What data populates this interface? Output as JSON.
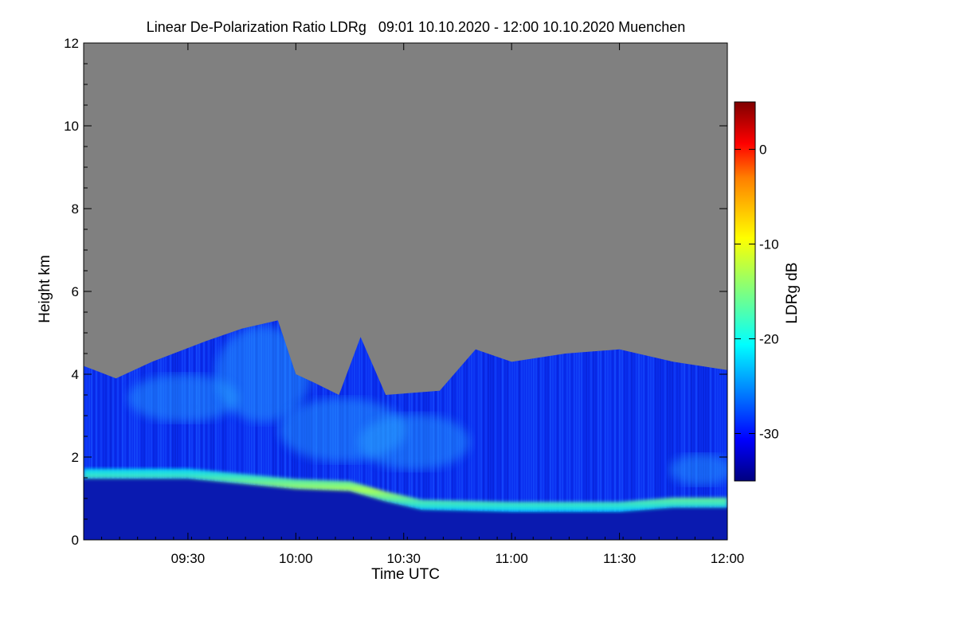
{
  "chart_data": {
    "type": "heatmap",
    "title": "Linear De-Polarization Ratio LDRg   09:01 10.10.2020 - 12:00 10.10.2020 Muenchen",
    "xlabel": "Time UTC",
    "ylabel": "Height km",
    "xlim": [
      "09:01",
      "12:00"
    ],
    "ylim": [
      0,
      12
    ],
    "x_ticks": [
      "09:30",
      "10:00",
      "10:30",
      "11:00",
      "11:30",
      "12:00"
    ],
    "y_ticks": [
      0,
      2,
      4,
      6,
      8,
      10,
      12
    ],
    "colorbar": {
      "label": "LDRg dB",
      "range": [
        -35,
        5
      ],
      "ticks": [
        0,
        -10,
        -20,
        -30
      ]
    },
    "no_data_color": "#808080",
    "colormap": [
      "#00007f",
      "#0000ff",
      "#007fff",
      "#00ffff",
      "#7fff7f",
      "#ffff00",
      "#ff7f00",
      "#ff0000",
      "#7f0000"
    ],
    "features": {
      "cloud_top_km": [
        {
          "time": "09:01",
          "height": 4.2
        },
        {
          "time": "09:10",
          "height": 3.9
        },
        {
          "time": "09:20",
          "height": 4.3
        },
        {
          "time": "09:35",
          "height": 4.8
        },
        {
          "time": "09:45",
          "height": 5.1
        },
        {
          "time": "09:55",
          "height": 5.3
        },
        {
          "time": "10:00",
          "height": 4.0
        },
        {
          "time": "10:05",
          "height": 3.8
        },
        {
          "time": "10:12",
          "height": 3.5
        },
        {
          "time": "10:18",
          "height": 4.9
        },
        {
          "time": "10:25",
          "height": 3.5
        },
        {
          "time": "10:40",
          "height": 3.6
        },
        {
          "time": "10:50",
          "height": 4.6
        },
        {
          "time": "11:00",
          "height": 4.3
        },
        {
          "time": "11:15",
          "height": 4.5
        },
        {
          "time": "11:30",
          "height": 4.6
        },
        {
          "time": "11:45",
          "height": 4.3
        },
        {
          "time": "12:00",
          "height": 4.1
        }
      ],
      "boundary_layer_top_km": [
        {
          "time": "09:01",
          "height": 1.6
        },
        {
          "time": "09:30",
          "height": 1.6
        },
        {
          "time": "10:00",
          "height": 1.35
        },
        {
          "time": "10:15",
          "height": 1.3
        },
        {
          "time": "10:25",
          "height": 1.05
        },
        {
          "time": "10:35",
          "height": 0.85
        },
        {
          "time": "11:00",
          "height": 0.8
        },
        {
          "time": "11:30",
          "height": 0.8
        },
        {
          "time": "11:45",
          "height": 0.9
        },
        {
          "time": "12:00",
          "height": 0.9
        }
      ]
    }
  }
}
